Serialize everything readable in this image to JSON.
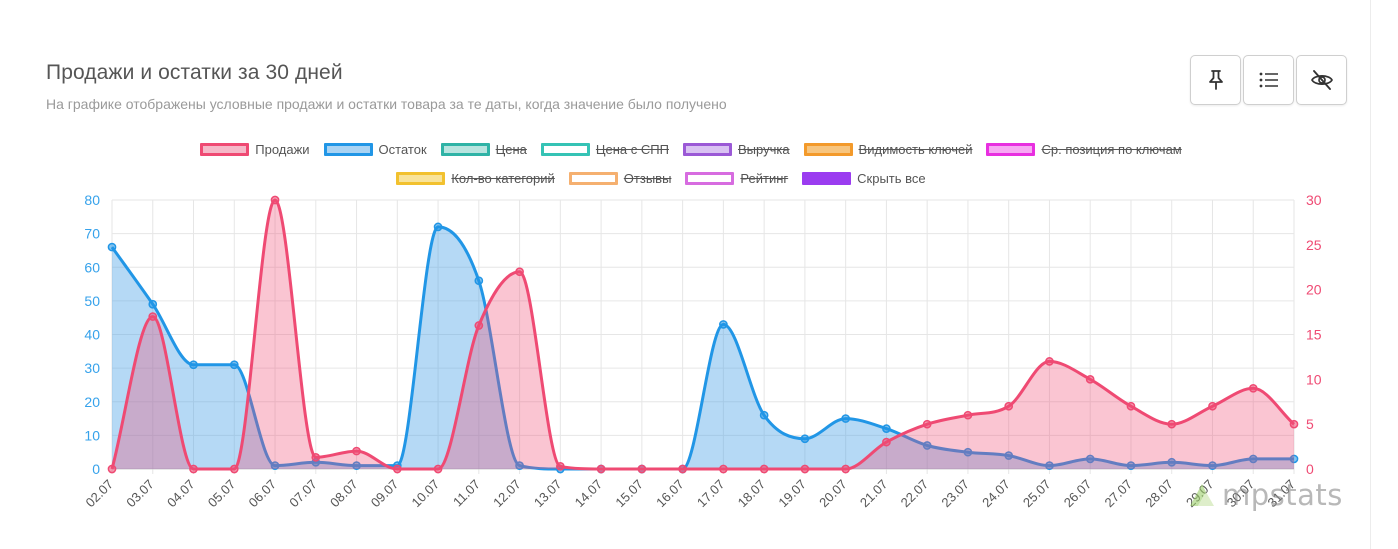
{
  "header": {
    "title": "Продажи и остатки за 30 дней",
    "subtitle": "На графике отображены условные продажи и остатки товара за те даты, когда значение было получено"
  },
  "toolbar": [
    {
      "name": "pin-button",
      "icon": "pin-icon"
    },
    {
      "name": "list-button",
      "icon": "list-icon"
    },
    {
      "name": "hide-button",
      "icon": "eye-off-icon"
    }
  ],
  "legend": {
    "row1": [
      {
        "label": "Продажи",
        "border": "#ef4a73",
        "fill": "#f5b8c8",
        "hidden": false
      },
      {
        "label": "Остаток",
        "border": "#2196e6",
        "fill": "#a9d3f3",
        "hidden": false
      },
      {
        "label": "Цена",
        "border": "#2fb3a6",
        "fill": "#b8e4df",
        "hidden": true
      },
      {
        "label": "Цена с СПП",
        "border": "#35c3b5",
        "fill": "#ffffff",
        "hidden": true
      },
      {
        "label": "Выручка",
        "border": "#9b59d6",
        "fill": "#d9c2f2",
        "hidden": true
      },
      {
        "label": "Видимость ключей",
        "border": "#f39a2b",
        "fill": "#f7c57f",
        "hidden": true
      },
      {
        "label": "Ср. позиция по ключам",
        "border": "#e82fe0",
        "fill": "#f7a8f3",
        "hidden": true
      }
    ],
    "row2": [
      {
        "label": "Кол-во категорий",
        "border": "#f2c12e",
        "fill": "#f8e39a",
        "hidden": true
      },
      {
        "label": "Отзывы",
        "border": "#f5b070",
        "fill": "#ffffff",
        "hidden": true
      },
      {
        "label": "Рейтинг",
        "border": "#d76ce0",
        "fill": "#ffffff",
        "hidden": true
      },
      {
        "label": "Скрыть все",
        "border": "#9b3cf0",
        "fill": "#9b3cf0",
        "hidden": false
      }
    ]
  },
  "chart_data": {
    "type": "area",
    "categories": [
      "02.07",
      "03.07",
      "04.07",
      "05.07",
      "06.07",
      "07.07",
      "08.07",
      "09.07",
      "10.07",
      "11.07",
      "12.07",
      "13.07",
      "14.07",
      "15.07",
      "16.07",
      "17.07",
      "18.07",
      "19.07",
      "20.07",
      "21.07",
      "22.07",
      "23.07",
      "24.07",
      "25.07",
      "26.07",
      "27.07",
      "28.07",
      "29.07",
      "30.07",
      "31.07"
    ],
    "series": [
      {
        "name": "Продажи",
        "axis": "right",
        "color": "#ef4a73",
        "values": [
          0,
          17,
          0,
          0,
          30,
          1.3,
          2,
          0,
          0,
          16,
          22,
          0.3,
          0,
          0,
          0,
          0,
          0,
          0,
          0,
          3,
          5,
          6,
          7,
          12,
          10,
          7,
          5,
          7,
          9,
          5
        ]
      },
      {
        "name": "Остаток",
        "axis": "left",
        "color": "#2196e6",
        "values": [
          66,
          49,
          31,
          31,
          1,
          2,
          1,
          1,
          72,
          56,
          1,
          0,
          0,
          0,
          0,
          43,
          16,
          9,
          15,
          12,
          7,
          5,
          4,
          1,
          3,
          1,
          2,
          1,
          3,
          3
        ]
      }
    ],
    "ylim_left": [
      0,
      80
    ],
    "yticks_left": [
      "0",
      "10",
      "20",
      "30",
      "40",
      "50",
      "60",
      "70",
      "80"
    ],
    "ylim_right": [
      0,
      30
    ],
    "yticks_right": [
      "0",
      "5",
      "10",
      "15",
      "20",
      "25",
      "30"
    ],
    "grid": true
  },
  "watermark": {
    "text": "mpstats"
  }
}
